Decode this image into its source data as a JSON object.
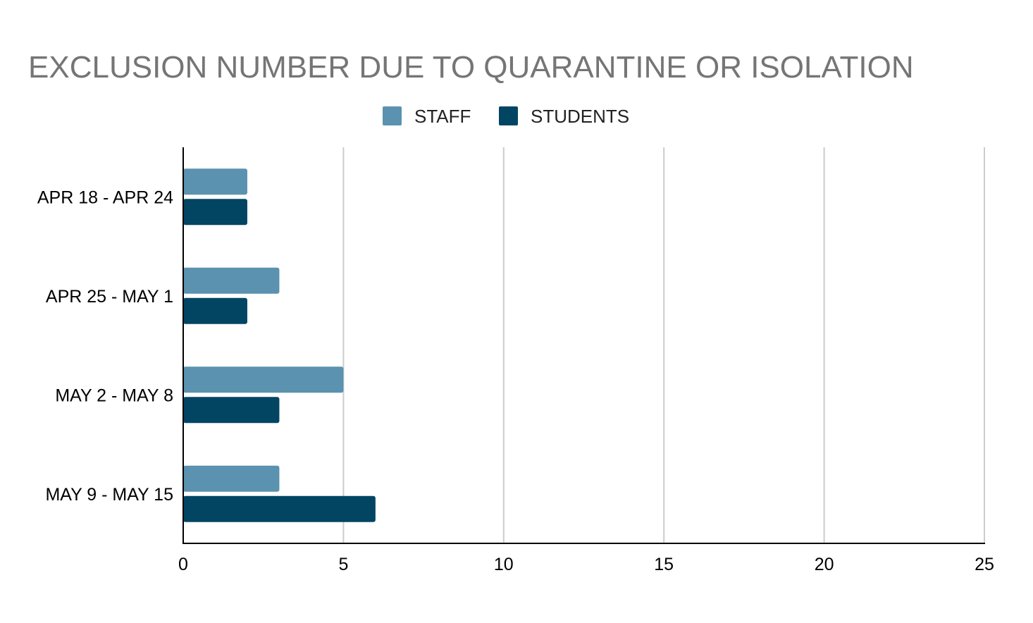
{
  "chart_data": {
    "type": "bar",
    "orientation": "horizontal",
    "title": "EXCLUSION NUMBER DUE TO QUARANTINE OR ISOLATION",
    "xlabel": "",
    "ylabel": "",
    "categories": [
      "APR 18 - APR 24",
      "APR 25 - MAY 1",
      "MAY 2 - MAY 8",
      "MAY 9 - MAY 15"
    ],
    "series": [
      {
        "name": "STAFF",
        "values": [
          2,
          3,
          5,
          3
        ],
        "color": "#5a92b0"
      },
      {
        "name": "STUDENTS",
        "values": [
          2,
          2,
          3,
          6
        ],
        "color": "#024563"
      }
    ],
    "xlim": [
      0,
      25
    ],
    "xticks": [
      "0",
      "5",
      "10",
      "15",
      "20",
      "25"
    ],
    "grid": "vertical",
    "legend_position": "top-center",
    "colors": {
      "title": "#757575",
      "gridline": "#cccccc",
      "axis": "#000000"
    }
  }
}
